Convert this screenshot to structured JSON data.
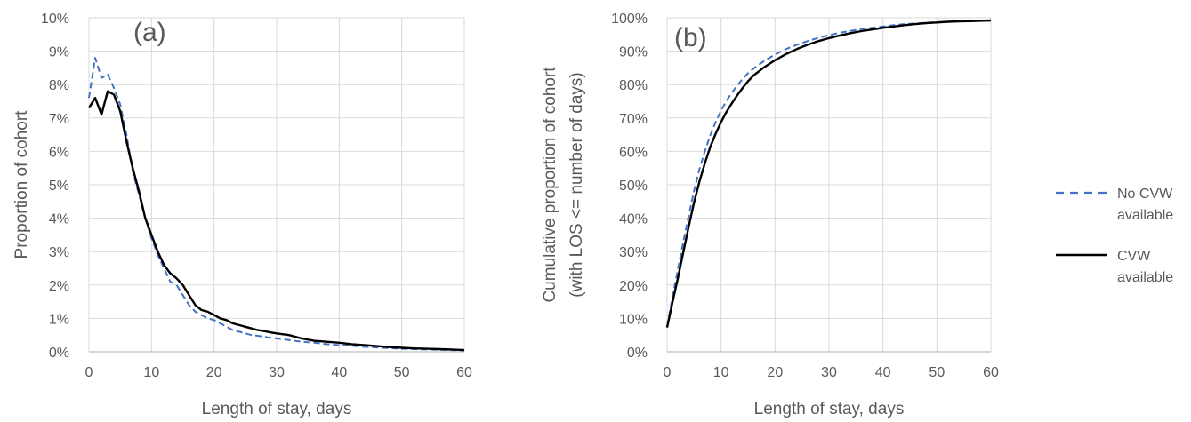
{
  "chart_data": [
    {
      "type": "line",
      "panel_label": "(a)",
      "xlabel": "Length of stay, days",
      "ylabel": "Proportion of cohort",
      "xlim": [
        0,
        60
      ],
      "ylim": [
        0,
        0.1
      ],
      "xticks": [
        0,
        10,
        20,
        30,
        40,
        50,
        60
      ],
      "xtick_labels": [
        "0",
        "10",
        "20",
        "30",
        "40",
        "50",
        "60"
      ],
      "yticks": [
        0,
        0.01,
        0.02,
        0.03,
        0.04,
        0.05,
        0.06,
        0.07,
        0.08,
        0.09,
        0.1
      ],
      "ytick_labels": [
        "0%",
        "1%",
        "2%",
        "3%",
        "4%",
        "5%",
        "6%",
        "7%",
        "8%",
        "9%",
        "10%"
      ],
      "grid": true,
      "series": [
        {
          "name": "No CVW available",
          "style": "dashed",
          "color": "#4472C4",
          "x": [
            0,
            1,
            2,
            3,
            4,
            5,
            6,
            7,
            8,
            9,
            10,
            11,
            12,
            13,
            14,
            15,
            16,
            17,
            18,
            19,
            20,
            21,
            22,
            23,
            24,
            25,
            26,
            27,
            28,
            29,
            30,
            32,
            34,
            36,
            38,
            40,
            42,
            44,
            46,
            48,
            50,
            52,
            54,
            56,
            58,
            60
          ],
          "y": [
            0.076,
            0.088,
            0.082,
            0.083,
            0.079,
            0.074,
            0.065,
            0.054,
            0.047,
            0.04,
            0.034,
            0.029,
            0.025,
            0.021,
            0.02,
            0.017,
            0.014,
            0.012,
            0.011,
            0.01,
            0.0095,
            0.0085,
            0.0075,
            0.0065,
            0.006,
            0.0055,
            0.005,
            0.0048,
            0.0045,
            0.0042,
            0.004,
            0.0035,
            0.003,
            0.0027,
            0.0023,
            0.002,
            0.0018,
            0.0015,
            0.0013,
            0.0011,
            0.0009,
            0.0008,
            0.0007,
            0.0006,
            0.0005,
            0.0004
          ]
        },
        {
          "name": "CVW available",
          "style": "solid",
          "color": "#000000",
          "x": [
            0,
            1,
            2,
            3,
            4,
            5,
            6,
            7,
            8,
            9,
            10,
            11,
            12,
            13,
            14,
            15,
            16,
            17,
            18,
            19,
            20,
            21,
            22,
            23,
            24,
            25,
            26,
            27,
            28,
            29,
            30,
            32,
            34,
            36,
            38,
            40,
            42,
            44,
            46,
            48,
            50,
            52,
            54,
            56,
            58,
            60
          ],
          "y": [
            0.073,
            0.076,
            0.071,
            0.078,
            0.077,
            0.072,
            0.063,
            0.055,
            0.048,
            0.04,
            0.035,
            0.03,
            0.026,
            0.0235,
            0.022,
            0.02,
            0.017,
            0.014,
            0.0125,
            0.012,
            0.011,
            0.01,
            0.0095,
            0.0085,
            0.008,
            0.0075,
            0.007,
            0.0065,
            0.0062,
            0.0058,
            0.0055,
            0.005,
            0.004,
            0.0033,
            0.003,
            0.0027,
            0.0023,
            0.002,
            0.0017,
            0.0014,
            0.0012,
            0.001,
            0.0009,
            0.0008,
            0.0007,
            0.0005
          ]
        }
      ]
    },
    {
      "type": "line",
      "panel_label": "(b)",
      "xlabel": "Length of stay, days",
      "ylabel_lines": [
        "Cumulative proportion of cohort",
        "(with LOS <= number of days)"
      ],
      "xlim": [
        0,
        60
      ],
      "ylim": [
        0,
        1.0
      ],
      "xticks": [
        0,
        10,
        20,
        30,
        40,
        50,
        60
      ],
      "xtick_labels": [
        "0",
        "10",
        "20",
        "30",
        "40",
        "50",
        "60"
      ],
      "yticks": [
        0,
        0.1,
        0.2,
        0.3,
        0.4,
        0.5,
        0.6,
        0.7,
        0.8,
        0.9,
        1.0
      ],
      "ytick_labels": [
        "0%",
        "10%",
        "20%",
        "30%",
        "40%",
        "50%",
        "60%",
        "70%",
        "80%",
        "90%",
        "100%"
      ],
      "grid": true,
      "legend_position": "right",
      "legend": [
        {
          "label_lines": [
            "No CVW",
            "available"
          ],
          "style": "dashed",
          "color": "#4472C4"
        },
        {
          "label_lines": [
            "CVW",
            "available"
          ],
          "style": "solid",
          "color": "#000000"
        }
      ],
      "series": [
        {
          "name": "No CVW available",
          "style": "dashed",
          "color": "#4472C4",
          "x": [
            0,
            1,
            2,
            3,
            4,
            5,
            6,
            7,
            8,
            9,
            10,
            11,
            12,
            13,
            14,
            15,
            16,
            18,
            20,
            22,
            24,
            26,
            28,
            30,
            32,
            34,
            36,
            38,
            40,
            42,
            44,
            46,
            48,
            50,
            52,
            54,
            56,
            58,
            60
          ],
          "y": [
            0.076,
            0.164,
            0.246,
            0.329,
            0.408,
            0.482,
            0.547,
            0.601,
            0.648,
            0.688,
            0.722,
            0.751,
            0.776,
            0.797,
            0.817,
            0.834,
            0.848,
            0.871,
            0.89,
            0.906,
            0.919,
            0.93,
            0.94,
            0.948,
            0.955,
            0.961,
            0.966,
            0.97,
            0.974,
            0.978,
            0.981,
            0.983,
            0.985,
            0.987,
            0.988,
            0.989,
            0.99,
            0.991,
            0.992
          ]
        },
        {
          "name": "CVW available",
          "style": "solid",
          "color": "#000000",
          "x": [
            0,
            1,
            2,
            3,
            4,
            5,
            6,
            7,
            8,
            9,
            10,
            11,
            12,
            13,
            14,
            15,
            16,
            18,
            20,
            22,
            24,
            26,
            28,
            30,
            32,
            34,
            36,
            38,
            40,
            42,
            44,
            46,
            48,
            50,
            52,
            54,
            56,
            58,
            60
          ],
          "y": [
            0.073,
            0.149,
            0.22,
            0.298,
            0.375,
            0.447,
            0.51,
            0.565,
            0.613,
            0.653,
            0.688,
            0.718,
            0.744,
            0.768,
            0.79,
            0.81,
            0.827,
            0.852,
            0.873,
            0.891,
            0.906,
            0.919,
            0.93,
            0.939,
            0.947,
            0.954,
            0.96,
            0.965,
            0.97,
            0.974,
            0.978,
            0.981,
            0.984,
            0.986,
            0.988,
            0.989,
            0.99,
            0.991,
            0.992
          ]
        }
      ]
    }
  ]
}
